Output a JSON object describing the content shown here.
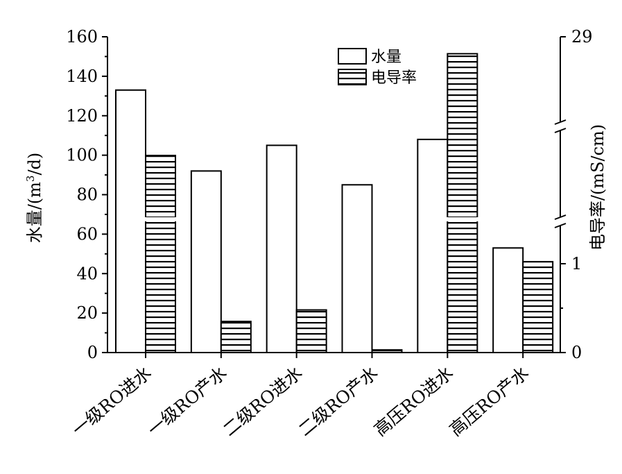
{
  "chart_data": {
    "type": "bar",
    "categories": [
      "一级RO进水",
      "一级RO产水",
      "二级RO进水",
      "二级RO产水",
      "高压RO进水",
      "高压RO产水"
    ],
    "series": [
      {
        "name": "水量",
        "axis": "left",
        "values": [
          133,
          92,
          105,
          85,
          108,
          53
        ],
        "pattern": "hollow"
      },
      {
        "name": "电导率",
        "axis": "right",
        "values": [
          15,
          0.35,
          0.48,
          0.03,
          27,
          1.26
        ],
        "pattern": "horizontal-stripes"
      }
    ],
    "left_axis": {
      "label": "水量/(m3/d)",
      "label_main": "水量/(m",
      "label_sup": "3",
      "label_tail": "/d)",
      "ylim": [
        0,
        160
      ],
      "ticks": [
        "0",
        "20",
        "40",
        "60",
        "80",
        "100",
        "120",
        "140",
        "160"
      ]
    },
    "right_axis": {
      "label": "电导率/(mS/cm)",
      "ylim": [
        0,
        29
      ],
      "ticks": [
        "0",
        "1",
        "29"
      ],
      "broken": true
    },
    "legend": {
      "placement": "top-center",
      "entries": [
        "水量",
        "电导率"
      ]
    },
    "grid": false
  }
}
